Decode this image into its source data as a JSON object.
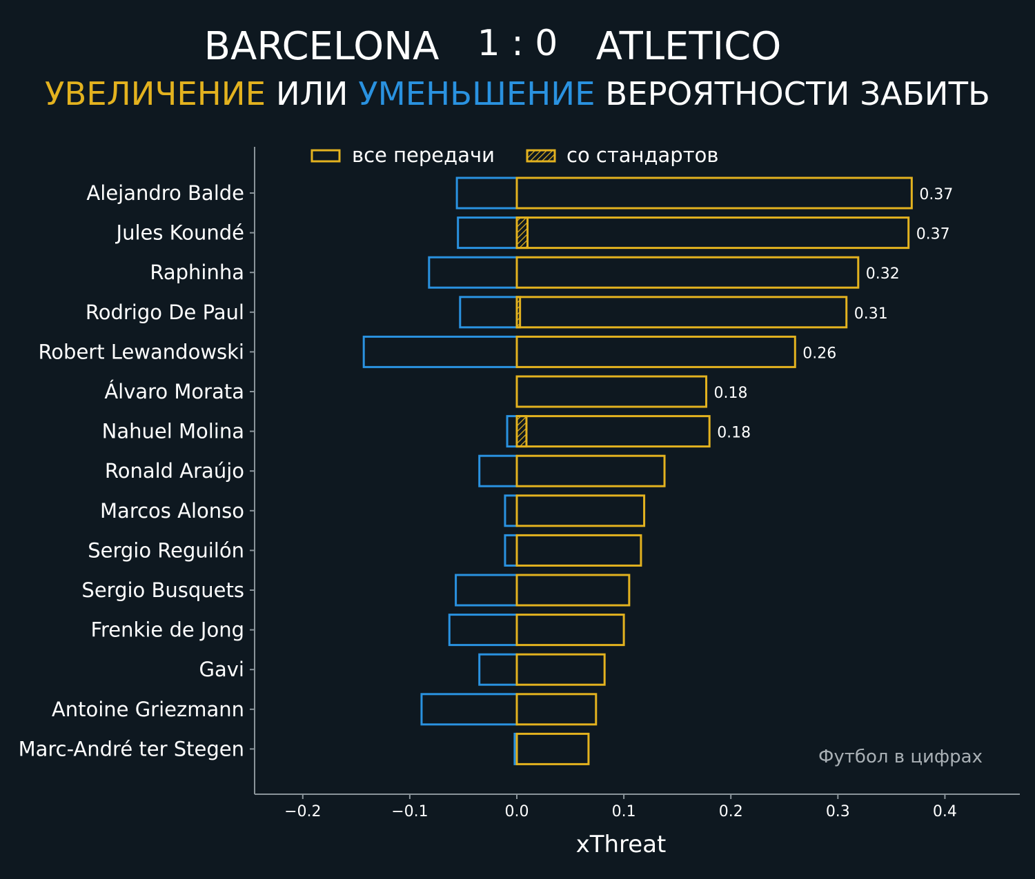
{
  "header": {
    "home_team": "BARCELONA",
    "score": "1 : 0",
    "away_team": "ATLETICO",
    "subtitle_increase": "УВЕЛИЧЕНИЕ",
    "subtitle_or": "ИЛИ",
    "subtitle_decrease": "УМЕНЬШЕНИЕ",
    "subtitle_rest": "ВЕРОЯТНОСТИ ЗАБИТЬ"
  },
  "colors": {
    "background": "#0e1820",
    "increase": "#e3b21f",
    "decrease": "#2a92e0",
    "axis": "#8a949a",
    "text": "#ffffff",
    "watermark": "#a9b0b5"
  },
  "watermark": "Футбол в цифрах",
  "chart_data": {
    "type": "bar",
    "orientation": "horizontal",
    "xlabel": "xThreat",
    "xlim": [
      -0.245,
      0.47
    ],
    "xticks": [
      -0.2,
      -0.1,
      0.0,
      0.1,
      0.2,
      0.3,
      0.4
    ],
    "xtick_labels": [
      "−0.2",
      "−0.1",
      "0.0",
      "0.1",
      "0.2",
      "0.3",
      "0.4"
    ],
    "legend": {
      "placement": "top",
      "entries": [
        "все передачи",
        "со стандартов"
      ]
    },
    "categories": [
      "Alejandro Balde",
      "Jules Koundé",
      "Raphinha",
      "Rodrigo De Paul",
      "Robert Lewandowski",
      "Álvaro Morata",
      "Nahuel Molina",
      "Ronald Araújo",
      "Marcos Alonso",
      "Sergio Reguilón",
      "Sergio Busquets",
      "Frenkie de Jong",
      "Gavi",
      "Antoine Griezmann",
      "Marc-André ter Stegen"
    ],
    "series": [
      {
        "name": "все передачи",
        "positive": [
          0.369,
          0.366,
          0.319,
          0.308,
          0.26,
          0.177,
          0.18,
          0.138,
          0.119,
          0.116,
          0.105,
          0.1,
          0.082,
          0.074,
          0.067
        ],
        "negative": [
          -0.056,
          -0.055,
          -0.082,
          -0.053,
          -0.143,
          0,
          -0.009,
          -0.035,
          -0.011,
          -0.011,
          -0.057,
          -0.063,
          -0.035,
          -0.089,
          -0.002
        ]
      },
      {
        "name": "со стандартов",
        "positive": [
          0,
          0.01,
          0,
          0.003,
          0,
          0,
          0.009,
          0,
          0,
          0,
          0,
          0,
          0,
          0,
          0
        ],
        "negative": [
          0,
          0,
          0,
          0,
          0,
          0,
          0,
          0,
          0,
          0,
          0,
          0,
          0,
          0,
          0
        ]
      }
    ],
    "value_labels": [
      "0.37",
      "0.37",
      "0.32",
      "0.31",
      "0.26",
      "0.18",
      "0.18",
      "",
      "",
      "",
      "",
      "",
      "",
      "",
      ""
    ]
  }
}
